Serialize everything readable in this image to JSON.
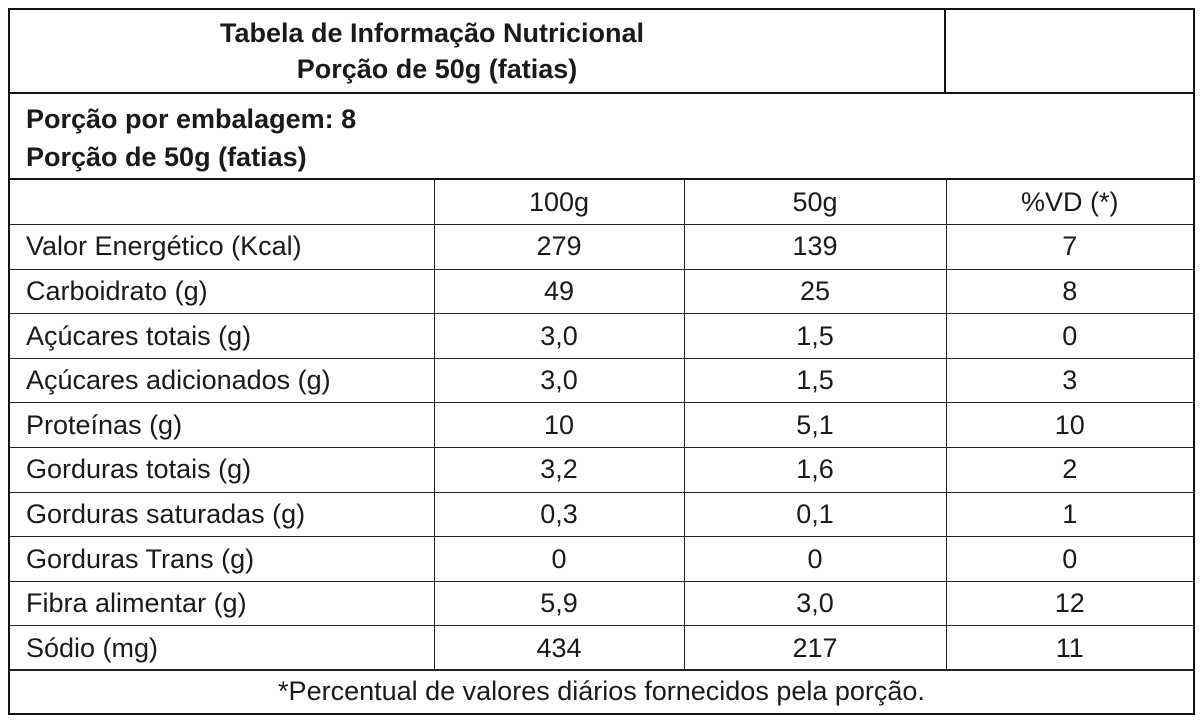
{
  "title": {
    "line1": "Tabela de Informação Nutricional",
    "line2": "Porção de 50g (fatias)"
  },
  "serving": {
    "per_package": "Porção por embalagem: 8",
    "portion": "Porção de 50g (fatias)"
  },
  "columns": [
    "",
    "100g",
    "50g",
    "%VD (*)"
  ],
  "rows": [
    {
      "label": "Valor Energético (Kcal)",
      "v100": "279",
      "v50": "139",
      "vd": "7"
    },
    {
      "label": "Carboidrato (g)",
      "v100": "49",
      "v50": "25",
      "vd": "8"
    },
    {
      "label": "Açúcares totais (g)",
      "v100": "3,0",
      "v50": "1,5",
      "vd": "0"
    },
    {
      "label": "Açúcares adicionados (g)",
      "v100": "3,0",
      "v50": "1,5",
      "vd": "3"
    },
    {
      "label": "Proteínas (g)",
      "v100": "10",
      "v50": "5,1",
      "vd": "10"
    },
    {
      "label": "Gorduras totais (g)",
      "v100": "3,2",
      "v50": "1,6",
      "vd": "2"
    },
    {
      "label": "Gorduras saturadas (g)",
      "v100": "0,3",
      "v50": "0,1",
      "vd": "1"
    },
    {
      "label": "Gorduras Trans (g)",
      "v100": "0",
      "v50": "0",
      "vd": "0"
    },
    {
      "label": "Fibra alimentar (g)",
      "v100": "5,9",
      "v50": "3,0",
      "vd": "12"
    },
    {
      "label": "Sódio (mg)",
      "v100": "434",
      "v50": "217",
      "vd": "11"
    }
  ],
  "footnote": "*Percentual de valores diários fornecidos pela porção."
}
